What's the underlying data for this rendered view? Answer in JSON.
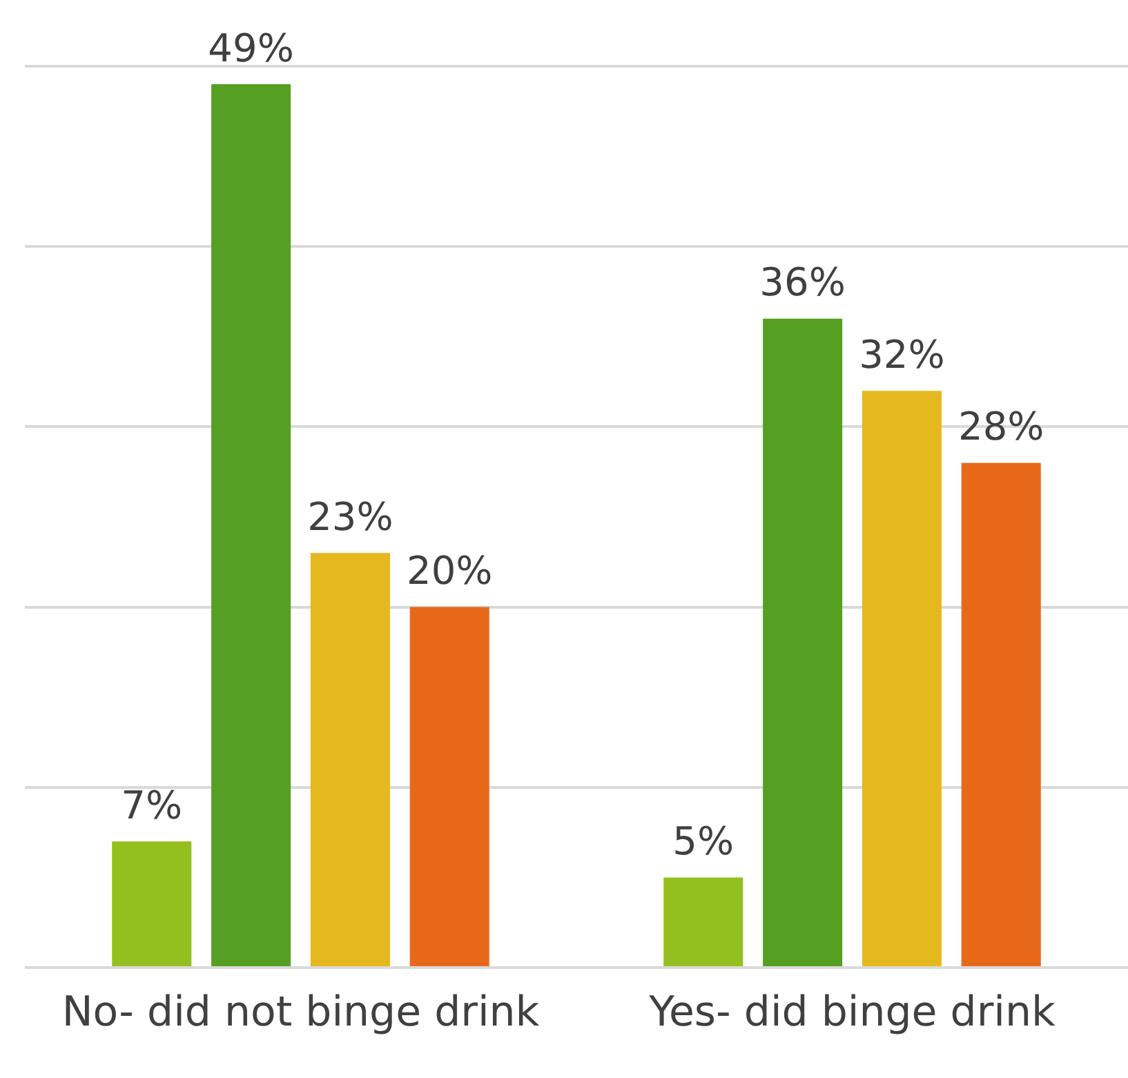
{
  "chart_data": {
    "type": "bar",
    "categories": [
      "No- did not binge drink",
      "Yes- did binge drink"
    ],
    "series": [
      {
        "color": "#93c01f",
        "values": [
          7,
          5
        ],
        "value_labels": [
          "7%",
          "5%"
        ]
      },
      {
        "color": "#55a023",
        "values": [
          49,
          36
        ],
        "value_labels": [
          "49%",
          "36%"
        ]
      },
      {
        "color": "#e6b820",
        "values": [
          23,
          32
        ],
        "value_labels": [
          "23%",
          "32%"
        ]
      },
      {
        "color": "#e8681a",
        "values": [
          20,
          28
        ],
        "value_labels": [
          "20%",
          "28%"
        ]
      }
    ],
    "ylim": [
      0,
      50
    ],
    "yticks": [
      {
        "value": 0,
        "label": null
      },
      {
        "value": 10,
        "label": null
      },
      {
        "value": 20,
        "label": null
      },
      {
        "value": 30,
        "label": null
      },
      {
        "value": 40,
        "label": null
      },
      {
        "value": 50,
        "label": null
      }
    ],
    "grid": "y",
    "tick_labels": "x",
    "legend": false
  }
}
